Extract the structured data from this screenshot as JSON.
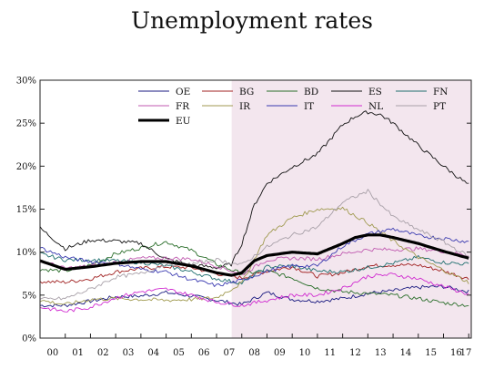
{
  "chart_data": {
    "type": "line",
    "title": "Unemployment rates",
    "x_tick_labels": [
      "00",
      "01",
      "02",
      "03",
      "04",
      "05",
      "06",
      "07",
      "08",
      "09",
      "10",
      "11",
      "12",
      "13",
      "14",
      "15",
      "16",
      "17"
    ],
    "x_range": [
      2000,
      2017.1
    ],
    "ylim": [
      0,
      30
    ],
    "y_ticks": [
      0,
      5,
      10,
      15,
      20,
      25,
      30
    ],
    "y_tick_labels": [
      "0%",
      "5%",
      "10%",
      "15%",
      "20%",
      "25%",
      "30%"
    ],
    "grid": false,
    "legend_placement": "top",
    "shaded_region": {
      "from": 2007.6,
      "to": 2017.1,
      "color": "#f3e6ee"
    },
    "series": [
      {
        "name": "OE",
        "color": "#1a1a80",
        "width": 0.9,
        "x": [
          2000,
          2001,
          2002,
          2003,
          2004,
          2005,
          2006,
          2007,
          2008,
          2009,
          2010,
          2011,
          2012,
          2013,
          2014,
          2015,
          2016,
          2017
        ],
        "y": [
          3.8,
          3.8,
          4.3,
          4.8,
          4.9,
          5.3,
          4.9,
          4.4,
          3.9,
          5.3,
          4.5,
          4.3,
          4.6,
          5.2,
          5.5,
          5.9,
          6.0,
          5.4
        ]
      },
      {
        "name": "BG",
        "color": "#a02020",
        "width": 0.9,
        "x": [
          2000,
          2001,
          2002,
          2003,
          2004,
          2005,
          2006,
          2007,
          2008,
          2009,
          2010,
          2011,
          2012,
          2013,
          2014,
          2015,
          2016,
          2017
        ],
        "y": [
          6.6,
          6.5,
          6.9,
          7.7,
          8.1,
          8.3,
          8.2,
          7.5,
          7.0,
          7.8,
          8.3,
          7.2,
          7.6,
          8.4,
          8.5,
          8.5,
          7.8,
          6.9
        ]
      },
      {
        "name": "BD",
        "color": "#2a6e2a",
        "width": 0.9,
        "x": [
          2000,
          2001,
          2002,
          2003,
          2004,
          2005,
          2006,
          2007,
          2008,
          2009,
          2010,
          2011,
          2012,
          2013,
          2014,
          2015,
          2016,
          2017
        ],
        "y": [
          8.0,
          7.8,
          8.5,
          9.8,
          10.5,
          11.2,
          10.2,
          8.6,
          7.5,
          7.8,
          7.0,
          5.8,
          5.4,
          5.2,
          5.0,
          4.6,
          4.1,
          3.8
        ]
      },
      {
        "name": "ES",
        "color": "#111111",
        "width": 0.9,
        "x": [
          2000,
          2001,
          2002,
          2003,
          2004,
          2005,
          2006,
          2007,
          2007.6,
          2008,
          2008.5,
          2009,
          2010,
          2011,
          2012,
          2012.5,
          2013,
          2013.5,
          2014,
          2015,
          2016,
          2017
        ],
        "y": [
          12.8,
          10.4,
          11.4,
          11.3,
          11.0,
          9.2,
          8.5,
          8.2,
          8.6,
          11.0,
          15.5,
          18.0,
          19.9,
          21.4,
          24.8,
          25.8,
          26.3,
          26.0,
          25.0,
          22.4,
          20.0,
          17.8
        ]
      },
      {
        "name": "FN",
        "color": "#1f6f6f",
        "width": 0.9,
        "x": [
          2000,
          2001,
          2002,
          2003,
          2004,
          2005,
          2006,
          2007,
          2008,
          2009,
          2010,
          2011,
          2012,
          2013,
          2014,
          2015,
          2016,
          2017
        ],
        "y": [
          9.8,
          9.1,
          9.1,
          9.0,
          8.8,
          8.4,
          7.7,
          6.9,
          6.4,
          8.3,
          8.4,
          7.8,
          7.7,
          8.2,
          8.7,
          9.4,
          8.8,
          8.6
        ]
      },
      {
        "name": "FR",
        "color": "#c05ab0",
        "width": 0.9,
        "x": [
          2000,
          2001,
          2002,
          2003,
          2004,
          2005,
          2006,
          2007,
          2008,
          2009,
          2010,
          2011,
          2012,
          2013,
          2014,
          2015,
          2016,
          2017
        ],
        "y": [
          9.0,
          8.1,
          8.4,
          8.8,
          9.3,
          9.3,
          9.2,
          8.4,
          7.4,
          9.1,
          9.3,
          9.2,
          9.8,
          10.3,
          10.3,
          10.4,
          10.1,
          9.6
        ]
      },
      {
        "name": "IR",
        "color": "#a09a50",
        "width": 0.9,
        "x": [
          2000,
          2001,
          2002,
          2003,
          2004,
          2005,
          2006,
          2007,
          2008,
          2009,
          2010,
          2011,
          2012,
          2013,
          2014,
          2015,
          2016,
          2017
        ],
        "y": [
          4.4,
          3.9,
          4.5,
          4.6,
          4.5,
          4.4,
          4.5,
          4.7,
          6.4,
          12.0,
          14.0,
          15.0,
          15.1,
          13.4,
          11.3,
          9.4,
          7.9,
          6.5
        ]
      },
      {
        "name": "IT",
        "color": "#3a3ab0",
        "width": 0.9,
        "x": [
          2000,
          2001,
          2002,
          2003,
          2004,
          2005,
          2006,
          2007,
          2008,
          2009,
          2010,
          2011,
          2012,
          2013,
          2014,
          2015,
          2016,
          2017
        ],
        "y": [
          10.5,
          9.4,
          8.9,
          8.7,
          8.0,
          7.7,
          6.8,
          6.1,
          6.7,
          7.8,
          8.4,
          8.4,
          10.7,
          12.1,
          12.7,
          11.9,
          11.6,
          11.2
        ]
      },
      {
        "name": "NL",
        "color": "#d02ad0",
        "width": 0.9,
        "x": [
          2000,
          2001,
          2002,
          2003,
          2004,
          2005,
          2006,
          2007,
          2008,
          2009,
          2010,
          2011,
          2012,
          2013,
          2014,
          2015,
          2016,
          2017
        ],
        "y": [
          3.6,
          3.1,
          3.6,
          4.7,
          5.4,
          5.7,
          5.0,
          4.2,
          3.8,
          4.4,
          5.0,
          5.0,
          5.8,
          7.2,
          7.4,
          6.9,
          6.0,
          5.1
        ]
      },
      {
        "name": "PT",
        "color": "#a8a0a8",
        "width": 0.9,
        "x": [
          2000,
          2001,
          2002,
          2003,
          2004,
          2005,
          2006,
          2007,
          2008,
          2009,
          2010,
          2011,
          2012,
          2013,
          2014,
          2015,
          2016,
          2017
        ],
        "y": [
          4.5,
          4.6,
          5.7,
          7.1,
          7.5,
          8.6,
          8.6,
          9.1,
          8.5,
          10.6,
          12.0,
          12.9,
          15.8,
          17.1,
          14.1,
          12.6,
          11.2,
          9.5
        ]
      },
      {
        "name": "EU",
        "color": "#000000",
        "width": 3.2,
        "x": [
          2000,
          2001,
          2002,
          2003,
          2004,
          2005,
          2006,
          2007,
          2007.6,
          2008,
          2008.5,
          2009,
          2010,
          2011,
          2012,
          2012.5,
          2013,
          2013.5,
          2014,
          2015,
          2016,
          2017
        ],
        "y": [
          9.0,
          8.0,
          8.3,
          8.7,
          8.9,
          8.9,
          8.4,
          7.6,
          7.3,
          7.6,
          9.0,
          9.6,
          10.0,
          9.8,
          11.0,
          11.7,
          12.0,
          12.0,
          11.7,
          11.0,
          10.1,
          9.3
        ]
      }
    ]
  }
}
